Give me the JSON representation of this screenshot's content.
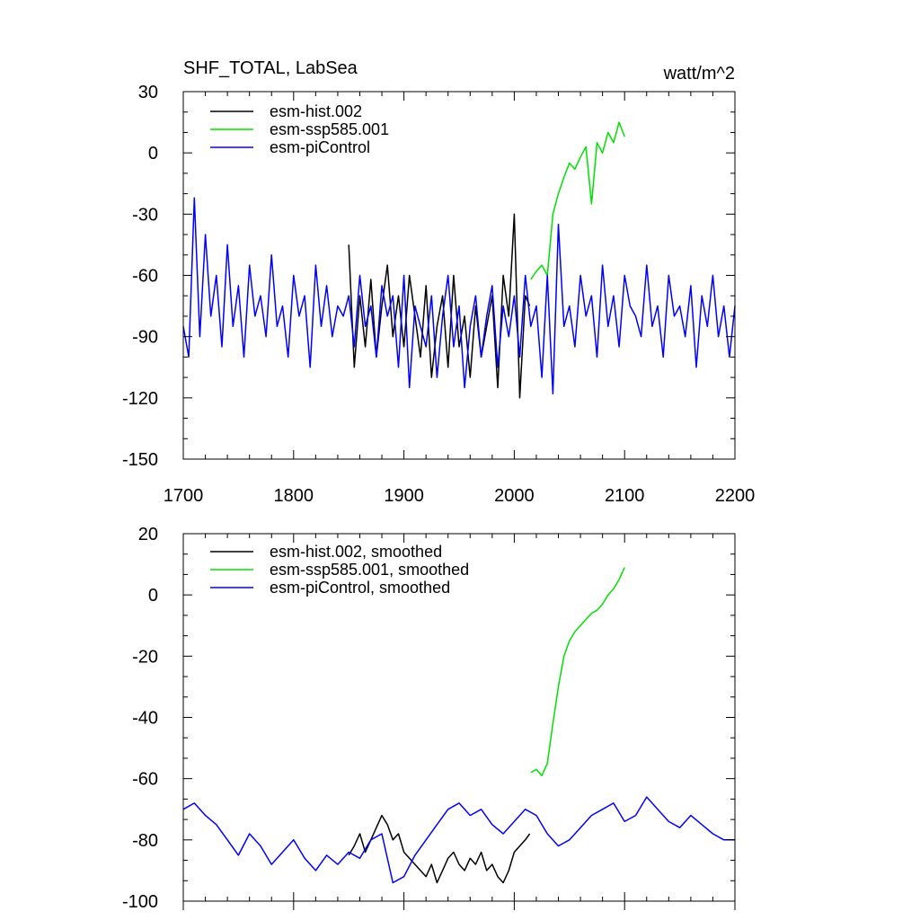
{
  "chart_data": [
    {
      "type": "line",
      "title": "SHF_TOTAL, LabSea",
      "units": "watt/m^2",
      "xlim": [
        1700,
        2200
      ],
      "ylim": [
        -150,
        30
      ],
      "x_ticks": [
        "1700",
        "1800",
        "1900",
        "2000",
        "2100",
        "2200"
      ],
      "y_ticks": [
        "30",
        "0",
        "-30",
        "-60",
        "-90",
        "-120",
        "-150"
      ],
      "legend_position": "top-left",
      "series": [
        {
          "name": "esm-hist.002",
          "color": "#000000",
          "x": [
            1850,
            1855,
            1860,
            1865,
            1870,
            1875,
            1880,
            1885,
            1890,
            1895,
            1900,
            1905,
            1910,
            1915,
            1920,
            1925,
            1930,
            1935,
            1940,
            1945,
            1950,
            1955,
            1960,
            1965,
            1970,
            1975,
            1980,
            1985,
            1990,
            1995,
            2000,
            2005,
            2010,
            2014
          ],
          "y": [
            -45,
            -105,
            -70,
            -95,
            -62,
            -100,
            -75,
            -55,
            -90,
            -70,
            -95,
            -60,
            -80,
            -100,
            -65,
            -110,
            -85,
            -70,
            -105,
            -60,
            -95,
            -80,
            -110,
            -75,
            -100,
            -85,
            -70,
            -115,
            -60,
            -80,
            -30,
            -120,
            -70,
            -75
          ]
        },
        {
          "name": "esm-ssp585.001",
          "color": "#00e000",
          "x": [
            2015,
            2020,
            2025,
            2030,
            2035,
            2040,
            2045,
            2050,
            2055,
            2060,
            2065,
            2070,
            2075,
            2080,
            2085,
            2090,
            2095,
            2100
          ],
          "y": [
            -62,
            -58,
            -55,
            -60,
            -30,
            -20,
            -12,
            -5,
            -8,
            -2,
            3,
            -25,
            5,
            0,
            10,
            5,
            15,
            8
          ]
        },
        {
          "name": "esm-piControl",
          "color": "#0000ff",
          "x": [
            1700,
            1705,
            1710,
            1715,
            1720,
            1725,
            1730,
            1735,
            1740,
            1745,
            1750,
            1755,
            1760,
            1765,
            1770,
            1775,
            1780,
            1785,
            1790,
            1795,
            1800,
            1805,
            1810,
            1815,
            1820,
            1825,
            1830,
            1835,
            1840,
            1845,
            1850,
            1855,
            1860,
            1865,
            1870,
            1875,
            1880,
            1885,
            1890,
            1895,
            1900,
            1905,
            1910,
            1915,
            1920,
            1925,
            1930,
            1935,
            1940,
            1945,
            1950,
            1955,
            1960,
            1965,
            1970,
            1975,
            1980,
            1985,
            1990,
            1995,
            2000,
            2005,
            2010,
            2015,
            2020,
            2025,
            2030,
            2035,
            2040,
            2045,
            2050,
            2055,
            2060,
            2065,
            2070,
            2075,
            2080,
            2085,
            2090,
            2095,
            2100,
            2105,
            2110,
            2115,
            2120,
            2125,
            2130,
            2135,
            2140,
            2145,
            2150,
            2155,
            2160,
            2165,
            2170,
            2175,
            2180,
            2185,
            2190,
            2195,
            2200
          ],
          "y": [
            -85,
            -100,
            -22,
            -90,
            -40,
            -80,
            -60,
            -95,
            -45,
            -85,
            -65,
            -100,
            -55,
            -80,
            -70,
            -90,
            -50,
            -85,
            -75,
            -100,
            -60,
            -80,
            -70,
            -105,
            -55,
            -85,
            -65,
            -90,
            -75,
            -80,
            -70,
            -95,
            -60,
            -85,
            -75,
            -100,
            -65,
            -80,
            -70,
            -105,
            -60,
            -115,
            -75,
            -85,
            -95,
            -70,
            -110,
            -80,
            -60,
            -95,
            -75,
            -115,
            -85,
            -70,
            -100,
            -80,
            -65,
            -105,
            -75,
            -90,
            -70,
            -100,
            -60,
            -85,
            -75,
            -110,
            -60,
            -118,
            -35,
            -85,
            -75,
            -95,
            -60,
            -80,
            -70,
            -100,
            -55,
            -85,
            -70,
            -95,
            -60,
            -75,
            -80,
            -90,
            -55,
            -85,
            -75,
            -100,
            -60,
            -80,
            -75,
            -90,
            -65,
            -105,
            -70,
            -85,
            -60,
            -90,
            -75,
            -100,
            -75
          ]
        }
      ]
    },
    {
      "type": "line",
      "title": "",
      "xlim": [
        1700,
        2200
      ],
      "ylim": [
        -100,
        20
      ],
      "y_ticks": [
        "20",
        "0",
        "-20",
        "-40",
        "-60",
        "-80",
        "-100"
      ],
      "legend_position": "top-left",
      "series": [
        {
          "name": "esm-hist.002, smoothed",
          "color": "#000000",
          "x": [
            1850,
            1855,
            1860,
            1865,
            1870,
            1875,
            1880,
            1885,
            1890,
            1895,
            1900,
            1905,
            1910,
            1915,
            1920,
            1925,
            1930,
            1935,
            1940,
            1945,
            1950,
            1955,
            1960,
            1965,
            1970,
            1975,
            1980,
            1985,
            1990,
            1995,
            2000,
            2005,
            2010,
            2014
          ],
          "y": [
            -85,
            -82,
            -78,
            -84,
            -80,
            -76,
            -72,
            -75,
            -80,
            -78,
            -84,
            -86,
            -88,
            -90,
            -92,
            -88,
            -94,
            -90,
            -86,
            -84,
            -88,
            -90,
            -86,
            -88,
            -84,
            -90,
            -88,
            -92,
            -94,
            -90,
            -84,
            -82,
            -80,
            -78
          ]
        },
        {
          "name": "esm-ssp585.001, smoothed",
          "color": "#00e000",
          "x": [
            2015,
            2020,
            2025,
            2030,
            2035,
            2040,
            2045,
            2050,
            2055,
            2060,
            2065,
            2070,
            2075,
            2080,
            2085,
            2090,
            2095,
            2100
          ],
          "y": [
            -58,
            -57,
            -59,
            -55,
            -42,
            -30,
            -20,
            -15,
            -12,
            -10,
            -8,
            -6,
            -5,
            -3,
            0,
            2,
            5,
            9
          ]
        },
        {
          "name": "esm-piControl, smoothed",
          "color": "#0000ff",
          "x": [
            1700,
            1710,
            1720,
            1730,
            1740,
            1750,
            1760,
            1770,
            1780,
            1790,
            1800,
            1810,
            1820,
            1830,
            1840,
            1850,
            1860,
            1870,
            1880,
            1890,
            1900,
            1910,
            1920,
            1930,
            1940,
            1950,
            1960,
            1970,
            1980,
            1990,
            2000,
            2010,
            2020,
            2030,
            2040,
            2050,
            2060,
            2070,
            2080,
            2090,
            2100,
            2110,
            2120,
            2130,
            2140,
            2150,
            2160,
            2170,
            2180,
            2190,
            2200
          ],
          "y": [
            -70,
            -68,
            -72,
            -75,
            -80,
            -85,
            -78,
            -82,
            -88,
            -84,
            -80,
            -86,
            -90,
            -85,
            -88,
            -84,
            -86,
            -80,
            -78,
            -94,
            -92,
            -85,
            -80,
            -75,
            -70,
            -68,
            -72,
            -70,
            -75,
            -78,
            -74,
            -70,
            -72,
            -78,
            -82,
            -80,
            -76,
            -72,
            -70,
            -68,
            -74,
            -72,
            -66,
            -70,
            -74,
            -76,
            -72,
            -75,
            -78,
            -80,
            -80
          ]
        }
      ]
    }
  ]
}
